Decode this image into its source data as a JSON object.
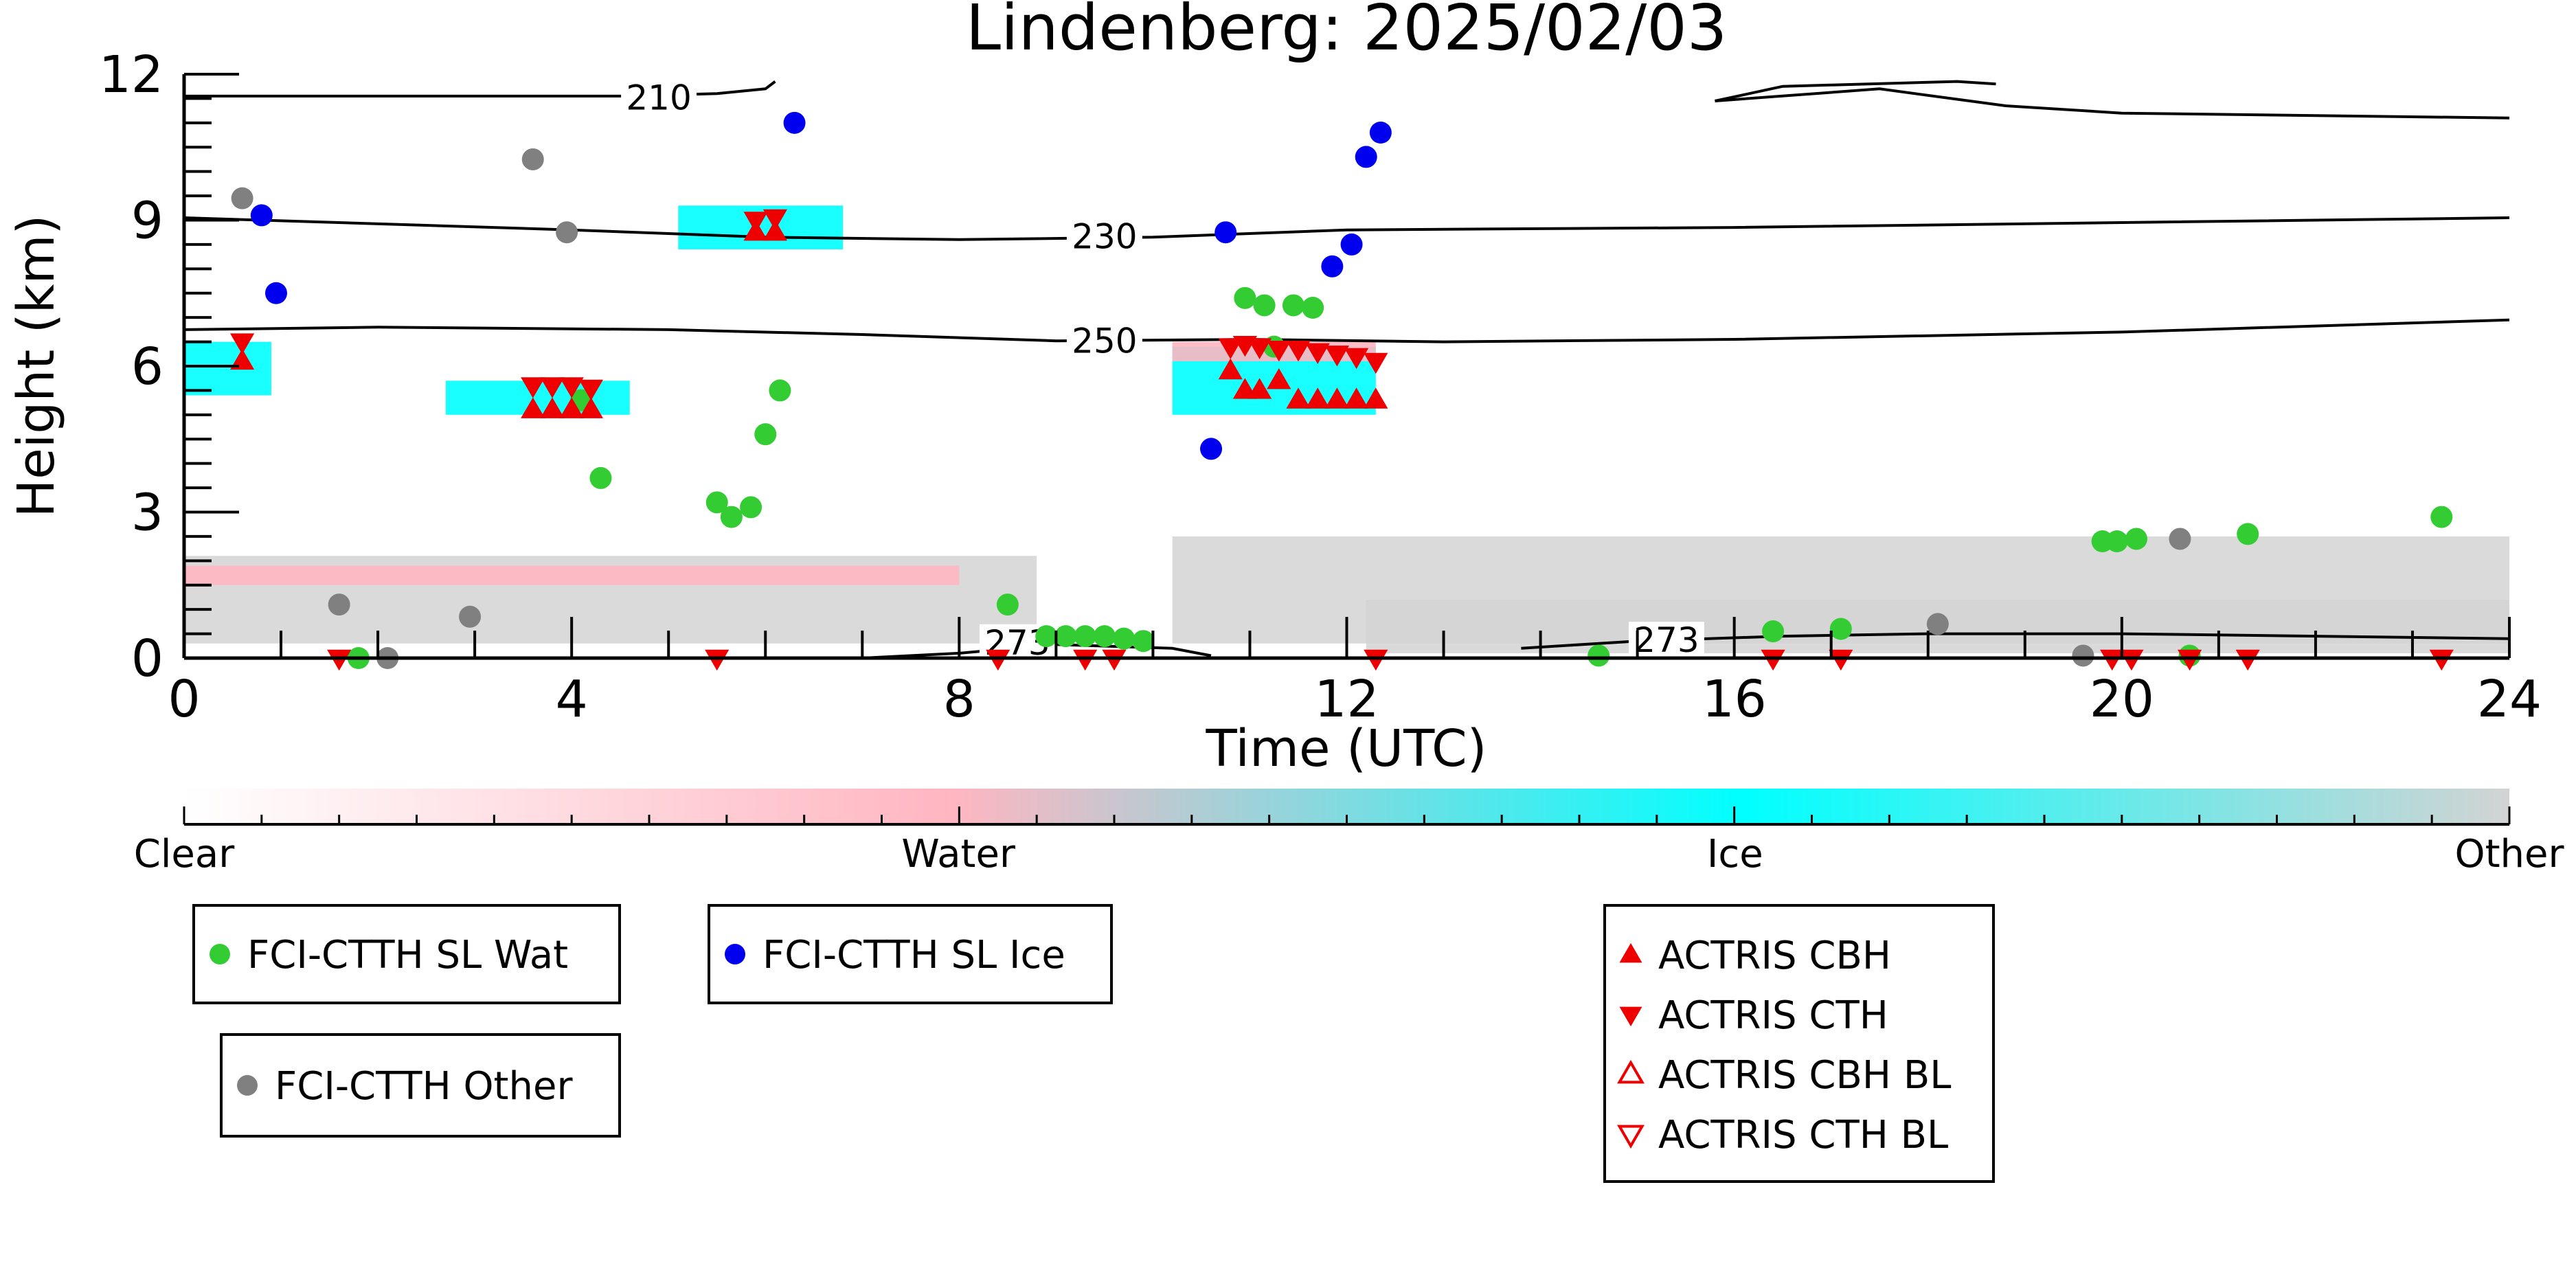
{
  "chart_data": {
    "type": "scatter",
    "title": "Lindenberg: 2025/02/03",
    "xlabel": "Time (UTC)",
    "ylabel": "Height (km)",
    "xlim": [
      0,
      24
    ],
    "ylim": [
      0,
      12
    ],
    "xticks": [
      "0",
      "4",
      "8",
      "12",
      "16",
      "20",
      "24"
    ],
    "yticks": [
      "0",
      "3",
      "6",
      "9",
      "12"
    ],
    "background_colors": {
      "clear": "#ffffff",
      "water": "#ffb6c1",
      "ice": "#00ffff",
      "other": "#d3d3d3"
    },
    "colorbar": {
      "labels": [
        "Clear",
        "Water",
        "Ice",
        "Other"
      ]
    },
    "contours": [
      {
        "label": "210",
        "label_at": [
          4.9,
          11.5
        ],
        "segments": [
          [
            [
              0,
              11.55
            ],
            [
              4.5,
              11.55
            ],
            [
              5.5,
              11.6
            ],
            [
              6.0,
              11.7
            ],
            [
              6.1,
              11.85
            ]
          ],
          [
            [
              15.8,
              11.45
            ],
            [
              17.5,
              11.7
            ],
            [
              18.8,
              11.35
            ],
            [
              20,
              11.2
            ],
            [
              22,
              11.15
            ],
            [
              24,
              11.1
            ]
          ],
          [
            [
              15.8,
              11.45
            ],
            [
              16.5,
              11.75
            ],
            [
              18.3,
              11.85
            ],
            [
              18.7,
              11.8
            ]
          ]
        ]
      },
      {
        "label": "230",
        "label_at": [
          9.5,
          8.65
        ],
        "segments": [
          [
            [
              0,
              9.05
            ],
            [
              4,
              8.8
            ],
            [
              6,
              8.65
            ],
            [
              8,
              8.6
            ],
            [
              10,
              8.65
            ],
            [
              12,
              8.8
            ],
            [
              16,
              8.85
            ],
            [
              20,
              8.95
            ],
            [
              24,
              9.05
            ]
          ]
        ]
      },
      {
        "label": "250",
        "label_at": [
          9.5,
          6.5
        ],
        "segments": [
          [
            [
              0,
              6.75
            ],
            [
              2,
              6.8
            ],
            [
              5,
              6.75
            ],
            [
              7,
              6.65
            ],
            [
              9,
              6.52
            ],
            [
              11,
              6.55
            ],
            [
              13,
              6.5
            ],
            [
              16,
              6.55
            ],
            [
              20,
              6.7
            ],
            [
              24,
              6.95
            ]
          ]
        ]
      },
      {
        "label": "273",
        "label_at": [
          8.6,
          0.3
        ],
        "segments": [
          [
            [
              7,
              0.0
            ],
            [
              8,
              0.1
            ],
            [
              9,
              0.28
            ],
            [
              10.2,
              0.2
            ],
            [
              10.6,
              0.05
            ]
          ]
        ]
      },
      {
        "label": "273",
        "label_at": [
          15.3,
          0.35
        ],
        "segments": [
          [
            [
              13.8,
              0.2
            ],
            [
              15,
              0.35
            ],
            [
              16.5,
              0.45
            ],
            [
              18,
              0.5
            ],
            [
              20,
              0.5
            ],
            [
              22,
              0.45
            ],
            [
              24,
              0.4
            ]
          ]
        ]
      }
    ],
    "cloud_patches": [
      {
        "cat": "other",
        "x": [
          0,
          8.8
        ],
        "y": [
          0.3,
          2.1
        ]
      },
      {
        "cat": "other",
        "x": [
          10.2,
          24
        ],
        "y": [
          0.3,
          2.5
        ]
      },
      {
        "cat": "other",
        "x": [
          12.2,
          24
        ],
        "y": [
          0.1,
          1.2
        ]
      },
      {
        "cat": "water",
        "x": [
          0,
          8.0
        ],
        "y": [
          1.5,
          1.9
        ]
      },
      {
        "cat": "ice",
        "x": [
          0,
          0.9
        ],
        "y": [
          5.4,
          6.5
        ]
      },
      {
        "cat": "ice",
        "x": [
          2.7,
          4.6
        ],
        "y": [
          5.0,
          5.7
        ]
      },
      {
        "cat": "ice",
        "x": [
          5.1,
          6.8
        ],
        "y": [
          8.4,
          9.3
        ]
      },
      {
        "cat": "ice",
        "x": [
          10.2,
          12.3
        ],
        "y": [
          5.0,
          6.4
        ]
      },
      {
        "cat": "water",
        "x": [
          10.2,
          12.3
        ],
        "y": [
          6.1,
          6.5
        ]
      }
    ],
    "series": [
      {
        "name": "FCI-CTTH SL Wat",
        "color": "#33cc33",
        "marker": "circle",
        "points": [
          [
            4.1,
            5.3
          ],
          [
            4.3,
            3.7
          ],
          [
            5.5,
            3.2
          ],
          [
            5.65,
            2.9
          ],
          [
            5.85,
            3.1
          ],
          [
            6.0,
            4.6
          ],
          [
            6.15,
            5.5
          ],
          [
            8.5,
            1.1
          ],
          [
            8.9,
            0.45
          ],
          [
            9.1,
            0.45
          ],
          [
            9.3,
            0.45
          ],
          [
            9.5,
            0.45
          ],
          [
            9.7,
            0.4
          ],
          [
            9.9,
            0.35
          ],
          [
            10.95,
            7.4
          ],
          [
            11.15,
            7.25
          ],
          [
            11.25,
            6.4
          ],
          [
            11.45,
            7.25
          ],
          [
            11.65,
            7.2
          ],
          [
            16.4,
            0.55
          ],
          [
            17.1,
            0.6
          ],
          [
            19.8,
            2.4
          ],
          [
            19.95,
            2.4
          ],
          [
            20.15,
            2.45
          ],
          [
            21.3,
            2.55
          ],
          [
            23.3,
            2.9
          ],
          [
            1.8,
            0.0
          ],
          [
            14.6,
            0.05
          ],
          [
            20.7,
            0.05
          ]
        ]
      },
      {
        "name": "FCI-CTTH SL Ice",
        "color": "#0000ee",
        "marker": "circle",
        "points": [
          [
            0.8,
            9.1
          ],
          [
            0.95,
            7.5
          ],
          [
            6.3,
            11.0
          ],
          [
            10.6,
            4.3
          ],
          [
            10.75,
            8.75
          ],
          [
            11.85,
            8.05
          ],
          [
            12.05,
            8.5
          ],
          [
            12.2,
            10.3
          ],
          [
            12.35,
            10.8
          ]
        ]
      },
      {
        "name": "FCI-CTTH Other",
        "color": "#808080",
        "marker": "circle",
        "points": [
          [
            0.6,
            9.45
          ],
          [
            1.6,
            1.1
          ],
          [
            2.95,
            0.85
          ],
          [
            3.6,
            10.25
          ],
          [
            3.95,
            8.75
          ],
          [
            18.1,
            0.7
          ],
          [
            20.6,
            2.45
          ],
          [
            2.1,
            0.0
          ],
          [
            19.6,
            0.05
          ]
        ]
      },
      {
        "name": "ACTRIS CBH",
        "color": "#ee0000",
        "marker": "triangle-up",
        "points": [
          [
            0.6,
            6.1
          ],
          [
            3.6,
            5.1
          ],
          [
            3.8,
            5.1
          ],
          [
            4.0,
            5.1
          ],
          [
            4.2,
            5.1
          ],
          [
            5.9,
            8.75
          ],
          [
            6.1,
            8.75
          ],
          [
            10.8,
            5.9
          ],
          [
            10.95,
            5.5
          ],
          [
            11.1,
            5.5
          ],
          [
            11.3,
            5.7
          ],
          [
            11.5,
            5.3
          ],
          [
            11.7,
            5.3
          ],
          [
            11.9,
            5.3
          ],
          [
            12.1,
            5.3
          ],
          [
            12.3,
            5.3
          ]
        ]
      },
      {
        "name": "ACTRIS CTH",
        "color": "#ee0000",
        "marker": "triangle-down",
        "points": [
          [
            0.6,
            6.5
          ],
          [
            3.6,
            5.6
          ],
          [
            3.8,
            5.6
          ],
          [
            4.0,
            5.6
          ],
          [
            4.2,
            5.55
          ],
          [
            5.9,
            9.0
          ],
          [
            6.1,
            9.05
          ],
          [
            10.8,
            6.4
          ],
          [
            10.95,
            6.45
          ],
          [
            11.1,
            6.4
          ],
          [
            11.3,
            6.35
          ],
          [
            11.5,
            6.35
          ],
          [
            11.7,
            6.3
          ],
          [
            11.9,
            6.25
          ],
          [
            12.1,
            6.2
          ],
          [
            12.3,
            6.1
          ],
          [
            1.6,
            0.0
          ],
          [
            5.5,
            0.0
          ],
          [
            8.4,
            0.0
          ],
          [
            9.3,
            0.0
          ],
          [
            9.6,
            0.0
          ],
          [
            12.3,
            0.0
          ],
          [
            16.4,
            0.0
          ],
          [
            17.1,
            0.0
          ],
          [
            19.9,
            0.0
          ],
          [
            20.1,
            0.0
          ],
          [
            20.7,
            0.0
          ],
          [
            21.3,
            0.0
          ],
          [
            23.3,
            0.0
          ]
        ]
      },
      {
        "name": "ACTRIS CBH BL",
        "color": "#ee0000",
        "marker": "triangle-up-open",
        "points": []
      },
      {
        "name": "ACTRIS CTH BL",
        "color": "#ee0000",
        "marker": "triangle-down-open",
        "points": []
      }
    ]
  }
}
